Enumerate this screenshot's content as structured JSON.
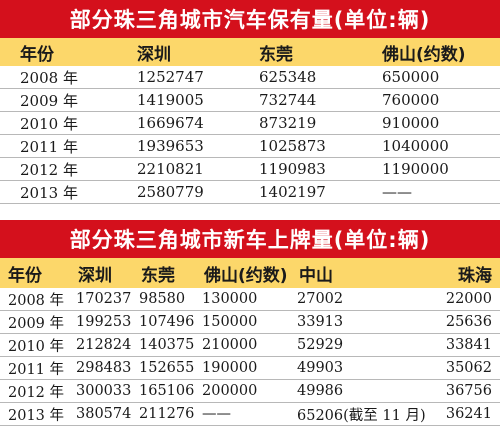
{
  "tables": [
    {
      "title": "部分珠三角城市汽车保有量(单位:辆)",
      "headers": [
        "年份",
        "深圳",
        "东莞",
        "佛山(约数)"
      ],
      "rows": [
        [
          "2008 年",
          "1252747",
          "625348",
          "650000"
        ],
        [
          "2009 年",
          "1419005",
          "732744",
          "760000"
        ],
        [
          "2010 年",
          "1669674",
          "873219",
          "910000"
        ],
        [
          "2011 年",
          "1939653",
          "1025873",
          "1040000"
        ],
        [
          "2012 年",
          "2210821",
          "1190983",
          "1190000"
        ],
        [
          "2013 年",
          "2580779",
          "1402197",
          "——"
        ]
      ]
    },
    {
      "title": "部分珠三角城市新车上牌量(单位:辆)",
      "headers": [
        "年份",
        "深圳",
        "东莞",
        "佛山(约数)",
        "中山",
        "珠海"
      ],
      "rows": [
        [
          "2008 年",
          "170237",
          "98580",
          "130000",
          "27002",
          "22000"
        ],
        [
          "2009 年",
          "199253",
          "107496",
          "150000",
          "33913",
          "25636"
        ],
        [
          "2010 年",
          "212824",
          "140375",
          "210000",
          "52929",
          "33841"
        ],
        [
          "2011 年",
          "298483",
          "152655",
          "190000",
          "49903",
          "35062"
        ],
        [
          "2012 年",
          "300033",
          "165106",
          "200000",
          "49986",
          "36756"
        ],
        [
          "2013 年",
          "380574",
          "211276",
          "——",
          "65206(截至 11 月)",
          "36241"
        ]
      ]
    }
  ],
  "colors": {
    "title_bg": "#d4101c",
    "title_text": "#ffffff",
    "header_bg": "#fcd76a",
    "row_line": "#b8b8b8"
  }
}
